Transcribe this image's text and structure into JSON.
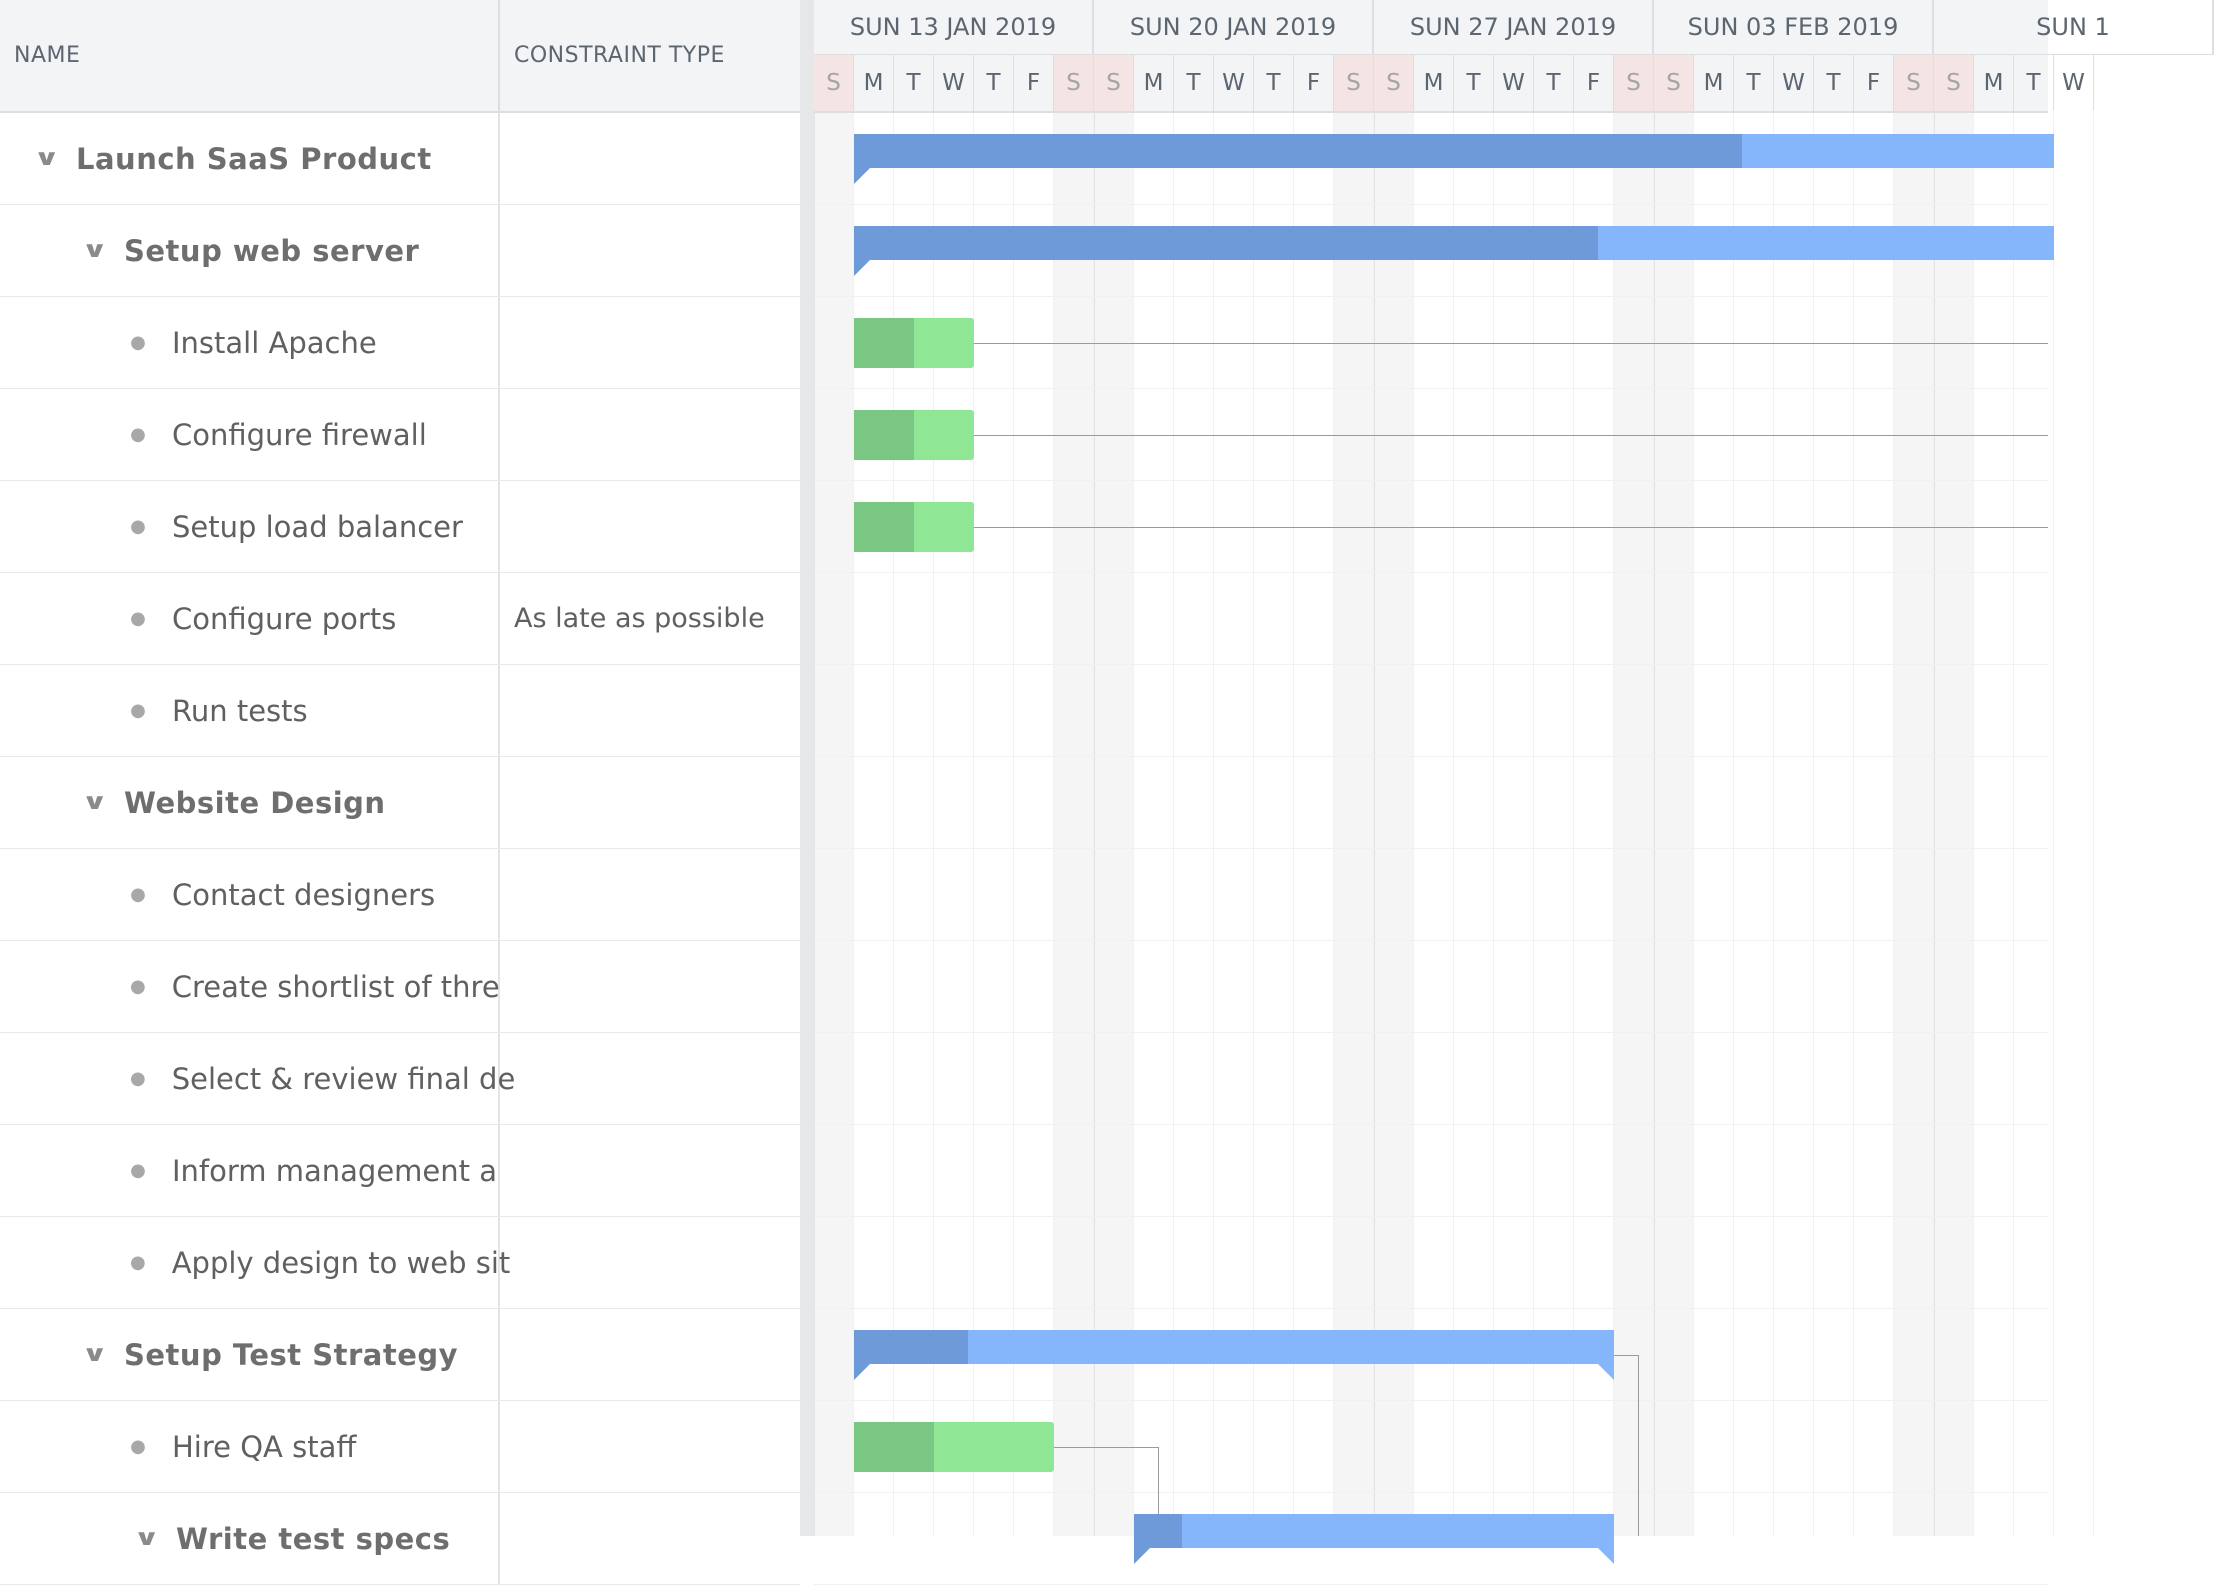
{
  "grid": {
    "header": {
      "name": "NAME",
      "constraint": "CONSTRAINT TYPE"
    },
    "rows": [
      {
        "name": "Launch SaaS Product",
        "constraint": "",
        "level": 0,
        "parent": true
      },
      {
        "name": "Setup web server",
        "constraint": "",
        "level": 1,
        "parent": true
      },
      {
        "name": "Install Apache",
        "constraint": "",
        "level": 2,
        "parent": false
      },
      {
        "name": "Configure firewall",
        "constraint": "",
        "level": 2,
        "parent": false
      },
      {
        "name": "Setup load balancer",
        "constraint": "",
        "level": 2,
        "parent": false
      },
      {
        "name": "Configure ports",
        "constraint": "As late as possible",
        "level": 2,
        "parent": false
      },
      {
        "name": "Run tests",
        "constraint": "",
        "level": 2,
        "parent": false
      },
      {
        "name": "Website Design",
        "constraint": "",
        "level": 1,
        "parent": true
      },
      {
        "name": "Contact designers",
        "constraint": "",
        "level": 2,
        "parent": false
      },
      {
        "name": "Create shortlist of thre",
        "constraint": "",
        "level": 2,
        "parent": false
      },
      {
        "name": "Select & review final de",
        "constraint": "",
        "level": 2,
        "parent": false
      },
      {
        "name": "Inform management a",
        "constraint": "",
        "level": 2,
        "parent": false
      },
      {
        "name": "Apply design to web sit",
        "constraint": "",
        "level": 2,
        "parent": false
      },
      {
        "name": "Setup Test Strategy",
        "constraint": "",
        "level": 1,
        "parent": true
      },
      {
        "name": "Hire QA staff",
        "constraint": "",
        "level": 2,
        "parent": false
      },
      {
        "name": "Write test specs",
        "constraint": "",
        "level": 2,
        "parent": true
      }
    ]
  },
  "timeline": {
    "weeks": [
      "SUN 13 JAN 2019",
      "SUN 20 JAN 2019",
      "SUN 27 JAN 2019",
      "SUN 03 FEB 2019",
      "SUN 1"
    ],
    "days": [
      "S",
      "M",
      "T",
      "W",
      "T",
      "F",
      "S"
    ],
    "bars": [
      {
        "row": 0,
        "type": "parent",
        "start": 1,
        "end": 31,
        "progress": 0.74
      },
      {
        "row": 1,
        "type": "parent",
        "start": 1,
        "end": 31,
        "progress": 0.62
      },
      {
        "row": 2,
        "type": "leaf",
        "start": 1,
        "end": 4,
        "progress": 0.5
      },
      {
        "row": 3,
        "type": "leaf",
        "start": 1,
        "end": 4,
        "progress": 0.5
      },
      {
        "row": 4,
        "type": "leaf",
        "start": 1,
        "end": 4,
        "progress": 0.5
      },
      {
        "row": 13,
        "type": "parent",
        "start": 1,
        "end": 20,
        "progress": 0.15
      },
      {
        "row": 14,
        "type": "leaf",
        "start": 1,
        "end": 6,
        "progress": 0.4
      },
      {
        "row": 15,
        "type": "parent",
        "start": 8,
        "end": 20,
        "progress": 0.1
      }
    ]
  }
}
